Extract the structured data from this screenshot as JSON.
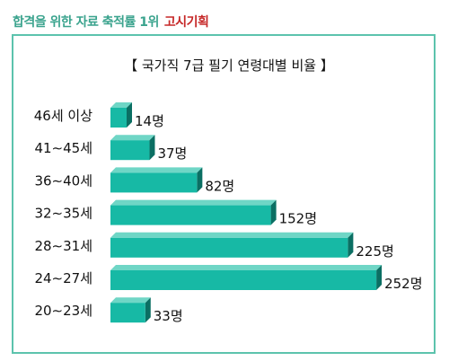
{
  "header": {
    "slogan": "합격을 위한 자료 축적률 1위",
    "brand": "고시기획"
  },
  "colors": {
    "bar_front": "#17b9a5",
    "bar_top": "#6fd6c6",
    "bar_side": "#0b6f63",
    "frame": "#5cc3ad",
    "slogan": "#3aa38d",
    "brand": "#c62828"
  },
  "chart_data": {
    "type": "bar",
    "orientation": "horizontal",
    "title": "【 국가직 7급 필기 연령대별 비율 】",
    "categories": [
      "46세 이상",
      "41∼45세",
      "36∼40세",
      "32∼35세",
      "28∼31세",
      "24∼27세",
      "20∼23세"
    ],
    "values": [
      14,
      37,
      82,
      152,
      225,
      252,
      33
    ],
    "value_labels": [
      "14명",
      "37명",
      "82명",
      "152명",
      "225명",
      "252명",
      "33명"
    ],
    "xlim": [
      0,
      252
    ],
    "grid": false,
    "legend": "none"
  }
}
